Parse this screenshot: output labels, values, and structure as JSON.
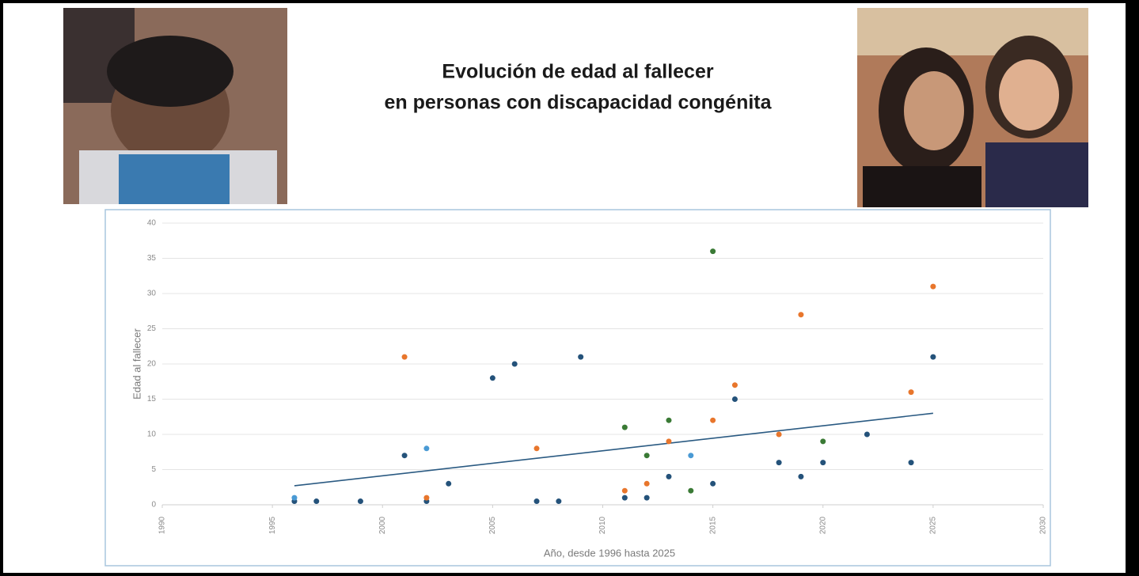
{
  "chart_data": {
    "type": "scatter",
    "title": [
      "Evolución de edad al fallecer",
      "en personas con discapacidad congénita"
    ],
    "x_label": "Año, desde 1996 hasta 2025",
    "y_label": "Edad al fallecer",
    "xlim": [
      1990,
      2030
    ],
    "xticks": [
      1990,
      1995,
      2000,
      2005,
      2010,
      2015,
      2020,
      2025,
      2030
    ],
    "ylim": [
      0,
      40
    ],
    "yticks": [
      0,
      5,
      10,
      15,
      20,
      25,
      30,
      35,
      40
    ],
    "grid": true,
    "series": [
      {
        "color": "#24527a",
        "x": [
          1996,
          1997,
          1999,
          2001,
          2002,
          2003,
          2005,
          2006,
          2007,
          2008,
          2009,
          2011,
          2012,
          2013,
          2015,
          2016,
          2018,
          2019,
          2020,
          2022,
          2024,
          2025
        ],
        "values": [
          0.5,
          0.5,
          0.5,
          7,
          0.5,
          3,
          18,
          20,
          0.5,
          0.5,
          21,
          1,
          1,
          4,
          3,
          15,
          6,
          4,
          6,
          10,
          6,
          21
        ]
      },
      {
        "color": "#e8762c",
        "x": [
          2001,
          2002,
          2007,
          2011,
          2012,
          2013,
          2015,
          2016,
          2018,
          2019,
          2024,
          2025
        ],
        "values": [
          21,
          1,
          8,
          2,
          3,
          9,
          12,
          17,
          10,
          27,
          16,
          31
        ]
      },
      {
        "color": "#3a7a35",
        "x": [
          2011,
          2012,
          2013,
          2014,
          2015,
          2020
        ],
        "values": [
          11,
          7,
          12,
          2,
          36,
          9
        ]
      },
      {
        "color": "#4a9ad4",
        "x": [
          1996,
          2002,
          2014
        ],
        "values": [
          1,
          8,
          7
        ]
      }
    ],
    "trendline": {
      "color": "#2a5a82",
      "x": [
        1996,
        2025
      ],
      "values": [
        2.7,
        13
      ]
    }
  }
}
